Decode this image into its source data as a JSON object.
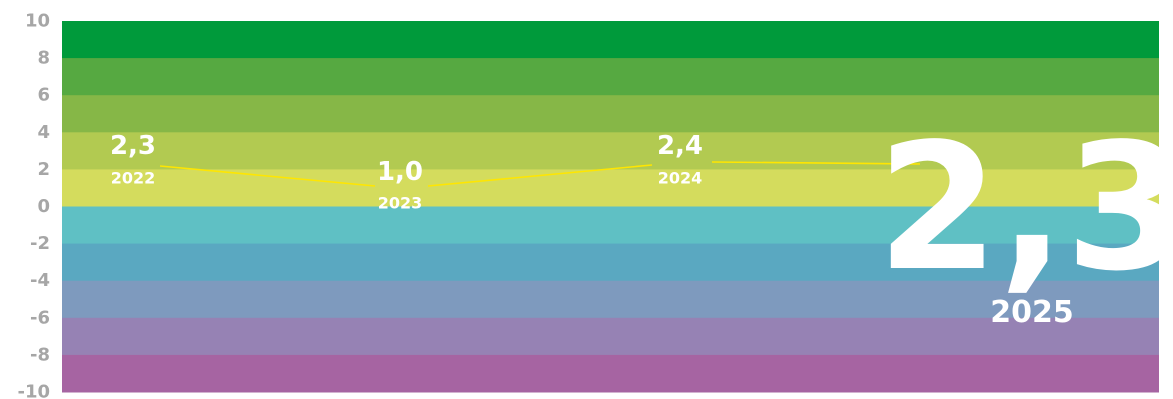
{
  "chart_data": {
    "type": "line",
    "title": "",
    "xlabel": "",
    "ylabel": "",
    "ylim": [
      -10,
      10
    ],
    "yticks": [
      "10",
      "8",
      "6",
      "4",
      "2",
      "0",
      "-2",
      "-4",
      "-6",
      "-8",
      "-10"
    ],
    "bands": [
      {
        "from": 8,
        "to": 10,
        "color": "#009a3b"
      },
      {
        "from": 6,
        "to": 8,
        "color": "#56a941"
      },
      {
        "from": 4,
        "to": 6,
        "color": "#86b747"
      },
      {
        "from": 2,
        "to": 4,
        "color": "#b2ca51"
      },
      {
        "from": 0,
        "to": 2,
        "color": "#d4dc5d"
      },
      {
        "from": -2,
        "to": 0,
        "color": "#5fc0c4"
      },
      {
        "from": -4,
        "to": -2,
        "color": "#5aa8c1"
      },
      {
        "from": -6,
        "to": -4,
        "color": "#7e9abe"
      },
      {
        "from": -8,
        "to": -6,
        "color": "#9682b4"
      },
      {
        "from": -10,
        "to": -8,
        "color": "#a664a2"
      }
    ],
    "line_color": "#ffe600",
    "points": [
      {
        "year": "2022",
        "value": 2.3,
        "value_label": "2,3"
      },
      {
        "year": "2023",
        "value": 1.0,
        "value_label": "1,0"
      },
      {
        "year": "2024",
        "value": 2.4,
        "value_label": "2,4"
      }
    ],
    "highlight": {
      "year": "2025",
      "value": 2.3,
      "value_label": "2,3"
    }
  }
}
